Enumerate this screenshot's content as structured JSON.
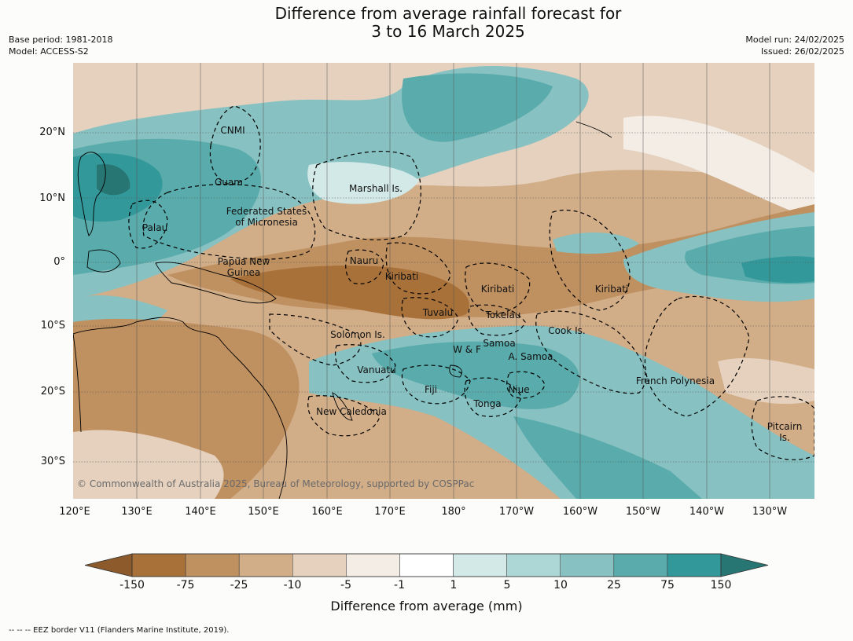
{
  "title": {
    "line1": "Difference from average rainfall forecast for",
    "line2": "3 to 16 March 2025"
  },
  "meta_left": {
    "base_period": "Base period: 1981-2018",
    "model": "Model: ACCESS-S2"
  },
  "meta_right": {
    "model_run": "Model run: 24/02/2025",
    "issued": "Issued: 26/02/2025"
  },
  "lat_labels": [
    "20°N",
    "10°N",
    "0°",
    "10°S",
    "20°S",
    "30°S"
  ],
  "lon_labels": [
    "120°E",
    "130°E",
    "140°E",
    "150°E",
    "160°E",
    "170°E",
    "180°",
    "170°W",
    "160°W",
    "150°W",
    "140°W",
    "130°W"
  ],
  "regions": {
    "cnmi": "CNMI",
    "guam": "Guam",
    "marshall": "Marshall Is.",
    "fsm1": "Federated States",
    "fsm2": "of Micronesia",
    "palau": "Palau",
    "png1": "Papua New",
    "png2": "Guinea",
    "nauru": "Nauru",
    "kiribati_w": "Kiribati",
    "kiribati_c": "Kiribati",
    "kiribati_e": "Kiribati",
    "tuvalu": "Tuvalu",
    "tokelau": "Tokelau",
    "solomon": "Solomon Is.",
    "cook": "Cook Is.",
    "wf": "W & F",
    "samoa": "Samoa",
    "asamoa": "A. Samoa",
    "vanuatu": "Vanuatu",
    "fiji": "Fiji",
    "niue": "Niue",
    "tonga": "Tonga",
    "frpoly": "French Polynesia",
    "newcal": "New Caledonia",
    "pitcairn1": "Pitcairn",
    "pitcairn2": "Is."
  },
  "copyright": "© Commonwealth of Australia 2025, Bureau of Meteorology, supported by COSPPac",
  "colorbar": {
    "ticks": [
      "-150",
      "-75",
      "-25",
      "-10",
      "-5",
      "-1",
      "1",
      "5",
      "10",
      "25",
      "75",
      "150"
    ],
    "colors": [
      "#8c5a2b",
      "#a9713a",
      "#bf9060",
      "#d1ad88",
      "#e5d1bd",
      "#f3ede6",
      "#ffffff",
      "#d3e9e7",
      "#add7d6",
      "#87c1c2",
      "#5aabab",
      "#33989a",
      "#287674"
    ],
    "title": "Difference from average (mm)"
  },
  "footnote": "--  --  -- EEZ border V11 (Flanders Marine Institute, 2019)."
}
